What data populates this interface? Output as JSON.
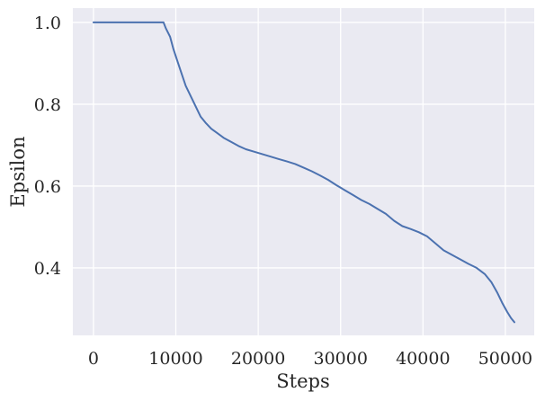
{
  "chart_data": {
    "type": "line",
    "title": "",
    "xlabel": "Steps",
    "ylabel": "Epsilon",
    "xlim": [
      -2500,
      53500
    ],
    "ylim": [
      0.235,
      1.035
    ],
    "x_ticks": [
      0,
      10000,
      20000,
      30000,
      40000,
      50000
    ],
    "x_tick_labels": [
      "0",
      "10000",
      "20000",
      "30000",
      "40000",
      "50000"
    ],
    "y_ticks": [
      0.4,
      0.6,
      0.8,
      1.0
    ],
    "y_tick_labels": [
      "0.4",
      "0.6",
      "0.8",
      "1.0"
    ],
    "grid": true,
    "background": "#eaeaf2",
    "series": [
      {
        "color": "#4c72b0",
        "x": [
          0,
          8500,
          8800,
          9300,
          9700,
          10200,
          10700,
          11200,
          11800,
          12400,
          13000,
          13600,
          14300,
          15000,
          15800,
          16700,
          17600,
          18500,
          19500,
          20500,
          21500,
          22500,
          23500,
          24500,
          25500,
          26500,
          27500,
          28500,
          29500,
          30500,
          31500,
          32500,
          33500,
          34500,
          35500,
          36500,
          37500,
          38500,
          39500,
          40500,
          41500,
          42500,
          43500,
          44500,
          45500,
          46500,
          47500,
          48300,
          49000,
          49600,
          50200,
          50700,
          51100
        ],
        "y": [
          1.0,
          1.0,
          0.985,
          0.965,
          0.935,
          0.905,
          0.875,
          0.845,
          0.82,
          0.795,
          0.77,
          0.755,
          0.74,
          0.73,
          0.718,
          0.708,
          0.698,
          0.69,
          0.684,
          0.678,
          0.672,
          0.666,
          0.66,
          0.654,
          0.645,
          0.636,
          0.626,
          0.615,
          0.602,
          0.59,
          0.578,
          0.566,
          0.556,
          0.544,
          0.532,
          0.515,
          0.502,
          0.495,
          0.487,
          0.477,
          0.46,
          0.443,
          0.432,
          0.421,
          0.41,
          0.4,
          0.385,
          0.365,
          0.34,
          0.315,
          0.293,
          0.277,
          0.267
        ]
      }
    ]
  }
}
